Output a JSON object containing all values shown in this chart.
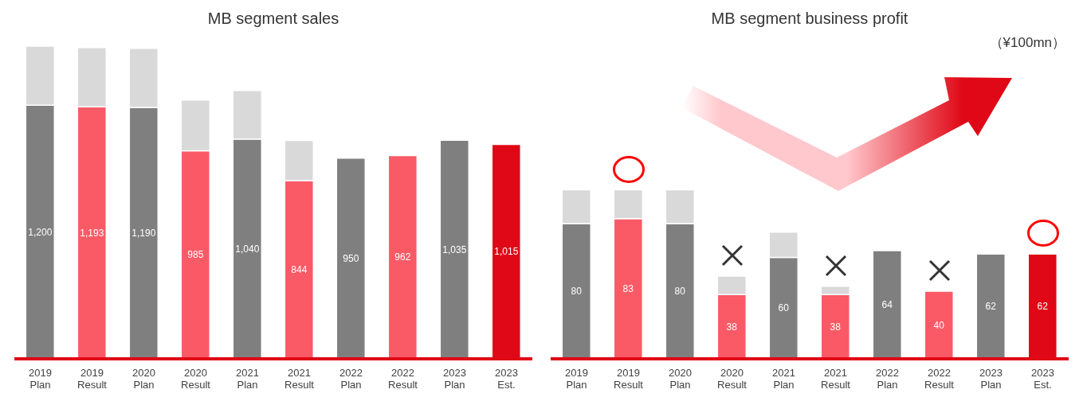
{
  "chart_data": [
    {
      "type": "bar",
      "title": "MB segment sales",
      "stacked": true,
      "categories": [
        "2019 Plan",
        "2019 Result",
        "2020 Plan",
        "2020 Result",
        "2021 Plan",
        "2021 Result",
        "2022 Plan",
        "2022 Result",
        "2023 Plan",
        "2023 Est."
      ],
      "series": [
        {
          "type": "bar",
          "colors": [
            "#7f7f7f",
            "#fa5a66",
            "#7f7f7f",
            "#fa5a66",
            "#7f7f7f",
            "#fa5a66",
            "#7f7f7f",
            "#fa5a66",
            "#7f7f7f",
            "#e00816"
          ],
          "values": [
            1200,
            1193,
            1190,
            985,
            1040,
            844,
            950,
            962,
            1035,
            1015
          ],
          "value_labels": [
            "1,200",
            "1,193",
            "1,190",
            "985",
            "1,040",
            "844",
            "950",
            "962",
            "1,035",
            "1,015"
          ]
        },
        {
          "type": "bar",
          "color": "#d9d9d9",
          "values": [
            280,
            280,
            280,
            240,
            230,
            190,
            null,
            null,
            null,
            null
          ]
        }
      ]
    },
    {
      "type": "bar",
      "title": "MB segment  business profit",
      "stacked": true,
      "categories": [
        "2019 Plan",
        "2019 Result",
        "2020 Plan",
        "2020 Result",
        "2021 Plan",
        "2021 Result",
        "2022 Plan",
        "2022 Result",
        "2023 Plan",
        "2023 Est."
      ],
      "series": [
        {
          "type": "bar",
          "colors": [
            "#7f7f7f",
            "#fa5a66",
            "#7f7f7f",
            "#fa5a66",
            "#7f7f7f",
            "#fa5a66",
            "#7f7f7f",
            "#fa5a66",
            "#7f7f7f",
            "#e00816"
          ],
          "values": [
            80,
            83,
            80,
            38,
            60,
            38,
            64,
            40,
            62,
            62
          ],
          "value_labels": [
            "80",
            "83",
            "80",
            "38",
            "60",
            "38",
            "64",
            "40",
            "62",
            "62"
          ]
        },
        {
          "type": "bar",
          "color": "#d9d9d9",
          "values": [
            20,
            17,
            20,
            11,
            15,
            5,
            null,
            null,
            null,
            null
          ]
        }
      ],
      "annotations": [
        "（¥100mn）"
      ]
    }
  ]
}
